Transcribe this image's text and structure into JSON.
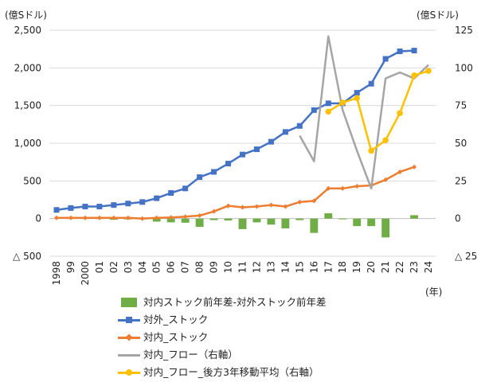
{
  "units": {
    "left": "(億Sドル)",
    "right": "(億Sドル)",
    "x_suffix": "(年)"
  },
  "colors": {
    "diff": "#70ad47",
    "outward": "#4472c4",
    "inward": "#ed7d31",
    "flow": "#a5a5a5",
    "flow_avg": "#ffc000"
  },
  "legend": [
    {
      "label": "対内ストック前年差-対外ストック前年差",
      "kind": "bar",
      "color_key": "diff"
    },
    {
      "label": "対外_ストック",
      "kind": "line",
      "marker": "square",
      "color_key": "outward"
    },
    {
      "label": "対内_ストック",
      "kind": "line",
      "marker": "diamond",
      "color_key": "inward"
    },
    {
      "label": "対内_フロー（右軸）",
      "kind": "line",
      "marker": "none",
      "color_key": "flow"
    },
    {
      "label": "対内_フロー_後方3年移動平均（右軸）",
      "kind": "line",
      "marker": "dot",
      "color_key": "flow_avg"
    }
  ],
  "chart_data": {
    "type": "bar+line",
    "categories": [
      "1998",
      "99",
      "2000",
      "01",
      "02",
      "03",
      "04",
      "05",
      "06",
      "07",
      "08",
      "09",
      "10",
      "11",
      "12",
      "13",
      "14",
      "15",
      "16",
      "17",
      "18",
      "19",
      "20",
      "21",
      "22",
      "23",
      "24"
    ],
    "y_left": {
      "min": -500,
      "max": 2500,
      "ticks": [
        -500,
        0,
        500,
        1000,
        1500,
        2000,
        2500
      ],
      "tick_labels": [
        "△ 500",
        "0",
        "500",
        "1,000",
        "1,500",
        "2,000",
        "2,500"
      ]
    },
    "y_right": {
      "min": -25,
      "max": 125,
      "ticks": [
        -25,
        0,
        25,
        50,
        75,
        100,
        125
      ],
      "tick_labels": [
        "△ 25",
        "0",
        "25",
        "50",
        "75",
        "100",
        "125"
      ]
    },
    "series": [
      {
        "key": "diff",
        "name": "対内ストック前年差-対外ストック前年差",
        "type": "bar",
        "axis": "left",
        "values": [
          null,
          -5,
          -5,
          -5,
          -15,
          -10,
          -10,
          -40,
          -50,
          -55,
          -110,
          -20,
          -25,
          -140,
          -50,
          -80,
          -130,
          -20,
          -190,
          70,
          -10,
          -100,
          -100,
          -250,
          0,
          45,
          null
        ]
      },
      {
        "key": "outward",
        "name": "対外_ストック",
        "type": "line",
        "axis": "left",
        "values": [
          115,
          140,
          160,
          160,
          180,
          200,
          220,
          270,
          340,
          400,
          550,
          620,
          730,
          850,
          920,
          1020,
          1150,
          1230,
          1440,
          1530,
          1530,
          1670,
          1790,
          2120,
          2220,
          2230,
          null
        ]
      },
      {
        "key": "inward",
        "name": "対内_ストック",
        "type": "line",
        "axis": "left",
        "values": [
          10,
          10,
          10,
          10,
          10,
          10,
          0,
          10,
          15,
          25,
          40,
          95,
          170,
          150,
          160,
          180,
          160,
          220,
          235,
          400,
          400,
          430,
          440,
          515,
          620,
          685,
          null
        ]
      },
      {
        "key": "flow",
        "name": "対内_フロー（右軸）",
        "type": "line",
        "axis": "right",
        "values": [
          null,
          null,
          null,
          null,
          null,
          null,
          null,
          null,
          null,
          null,
          null,
          null,
          null,
          null,
          null,
          null,
          null,
          55,
          38,
          121,
          72,
          45,
          20,
          93,
          97,
          93,
          102
        ]
      },
      {
        "key": "flow_avg",
        "name": "対内_フロー_後方3年移動平均（右軸）",
        "type": "line",
        "axis": "right",
        "values": [
          null,
          null,
          null,
          null,
          null,
          null,
          null,
          null,
          null,
          null,
          null,
          null,
          null,
          null,
          null,
          null,
          null,
          null,
          null,
          71,
          77,
          80,
          45,
          52,
          70,
          95,
          98
        ]
      }
    ],
    "grid": true,
    "legend_position": "bottom"
  }
}
